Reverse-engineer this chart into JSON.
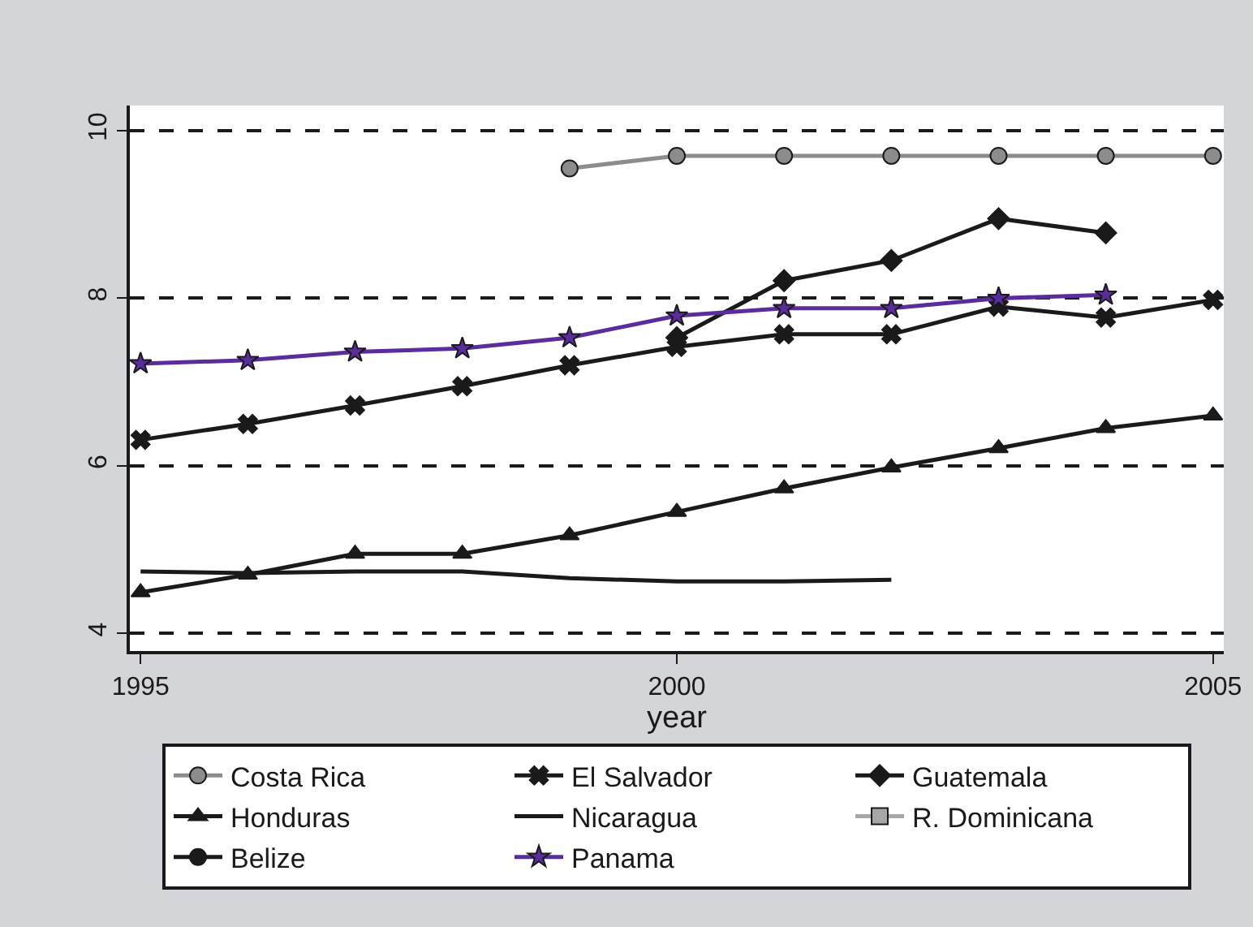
{
  "chart_data": {
    "type": "line",
    "xlabel": "year",
    "x": [
      1995,
      1996,
      1997,
      1998,
      1999,
      2000,
      2001,
      2002,
      2003,
      2004,
      2005
    ],
    "xlim": [
      1994.9,
      2005.1
    ],
    "xticks": [
      1995,
      2000,
      2005
    ],
    "ylim": [
      3.79,
      10.3
    ],
    "yticks": [
      4,
      6,
      8,
      10
    ],
    "grid": "y",
    "legend": "bottom",
    "series": [
      {
        "name": "Costa Rica",
        "color": "#8c8c8c",
        "marker": "circle",
        "values": [
          null,
          null,
          null,
          null,
          9.55,
          9.7,
          9.7,
          9.7,
          9.7,
          9.7,
          9.7
        ]
      },
      {
        "name": "El Salvador",
        "color": "#1a1a1a",
        "marker": "cross",
        "values": [
          6.31,
          6.5,
          6.72,
          6.95,
          7.2,
          7.42,
          7.57,
          7.57,
          7.9,
          7.77,
          7.98
        ]
      },
      {
        "name": "Guatemala",
        "color": "#1a1a1a",
        "marker": "diamond",
        "values": [
          null,
          null,
          null,
          null,
          null,
          7.53,
          8.21,
          8.45,
          8.95,
          8.78,
          null
        ]
      },
      {
        "name": "Honduras",
        "color": "#1a1a1a",
        "marker": "triangle",
        "values": [
          4.49,
          4.7,
          4.95,
          4.95,
          5.17,
          5.45,
          5.73,
          5.98,
          6.21,
          6.45,
          6.6
        ]
      },
      {
        "name": "Nicaragua",
        "color": "#1a1a1a",
        "marker": "none",
        "values": [
          4.74,
          4.72,
          4.74,
          4.74,
          4.66,
          4.62,
          4.62,
          4.64,
          null,
          null,
          null
        ]
      },
      {
        "name": "R. Dominicana",
        "color": "#a6a6a6",
        "marker": "square",
        "values": [
          null,
          null,
          null,
          null,
          null,
          null,
          null,
          null,
          null,
          null,
          null
        ]
      },
      {
        "name": "Belize",
        "color": "#1a1a1a",
        "marker": "circle",
        "values": [
          null,
          null,
          null,
          null,
          null,
          null,
          null,
          null,
          null,
          null,
          null
        ]
      },
      {
        "name": "Panama",
        "color": "#5b2c9c",
        "marker": "star",
        "values": [
          7.22,
          7.26,
          7.36,
          7.4,
          7.53,
          7.79,
          7.88,
          7.88,
          8.0,
          8.04,
          null
        ]
      }
    ]
  }
}
